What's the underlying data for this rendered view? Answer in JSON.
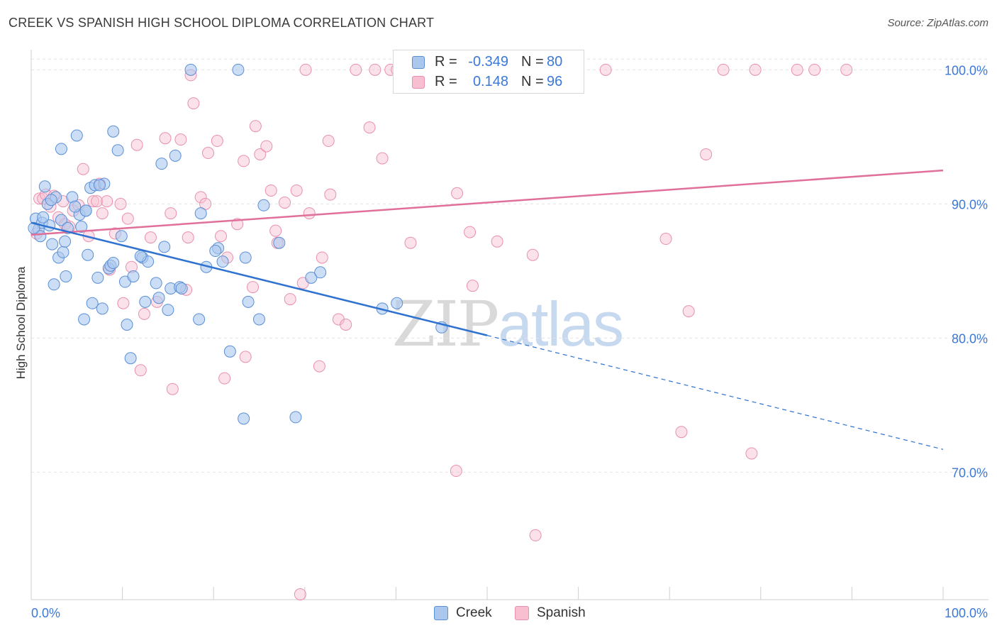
{
  "header": {
    "title": "CREEK VS SPANISH HIGH SCHOOL DIPLOMA CORRELATION CHART",
    "source": "Source: ZipAtlas.com"
  },
  "legend": {
    "creek": {
      "r_label": "R =",
      "r_value": "-0.349",
      "n_label": "N =",
      "n_value": "80"
    },
    "spanish": {
      "r_label": "R =",
      "r_value": "0.148",
      "n_label": "N =",
      "n_value": "96"
    }
  },
  "bottom_legend": [
    "Creek",
    "Spanish"
  ],
  "watermark": {
    "zip": "ZIP",
    "atlas": "atlas"
  },
  "colors": {
    "creek_fill": "#aac8ee",
    "creek_stroke": "#5a8fd6",
    "creek_line": "#2f72d0",
    "spanish_fill": "#f7bfd0",
    "spanish_stroke": "#e890ad",
    "spanish_line": "#e0709a",
    "tick_label": "#3b78d8",
    "grid": "#e4e4e4"
  },
  "chart_data": {
    "type": "scatter",
    "title": "CREEK VS SPANISH HIGH SCHOOL DIPLOMA CORRELATION CHART",
    "xlabel": "",
    "ylabel": "High School Diploma",
    "xlim": [
      0,
      100
    ],
    "ylim": [
      60.5,
      101.5
    ],
    "x_tick_labels": [
      "0.0%",
      "100.0%"
    ],
    "y_ticks": [
      70,
      80,
      90,
      100
    ],
    "y_tick_labels": [
      "70.0%",
      "80.0%",
      "90.0%",
      "100.0%"
    ],
    "grid": true,
    "series": [
      {
        "name": "Creek",
        "trend": {
          "x0": 0,
          "y0": 88.6,
          "x1": 50,
          "y1": 80.2,
          "dashed_to_x": 100,
          "dashed_to_y": 71.7
        },
        "points": [
          [
            0.5,
            88.9
          ],
          [
            0.8,
            88.1
          ],
          [
            1.0,
            87.6
          ],
          [
            1.2,
            88.6
          ],
          [
            1.5,
            91.3
          ],
          [
            1.8,
            90.0
          ],
          [
            2.0,
            88.4
          ],
          [
            2.3,
            87.0
          ],
          [
            2.5,
            84.0
          ],
          [
            2.7,
            90.5
          ],
          [
            3.0,
            86.0
          ],
          [
            3.3,
            88.8
          ],
          [
            3.5,
            86.4
          ],
          [
            3.7,
            87.2
          ],
          [
            3.8,
            84.6
          ],
          [
            3.3,
            94.1
          ],
          [
            4.0,
            88.2
          ],
          [
            4.5,
            90.5
          ],
          [
            5.0,
            95.1
          ],
          [
            5.3,
            89.2
          ],
          [
            5.5,
            88.3
          ],
          [
            5.8,
            81.4
          ],
          [
            6.0,
            89.5
          ],
          [
            6.2,
            86.2
          ],
          [
            6.5,
            91.2
          ],
          [
            6.7,
            82.6
          ],
          [
            7.0,
            91.4
          ],
          [
            7.3,
            84.5
          ],
          [
            7.8,
            82.2
          ],
          [
            8.0,
            91.5
          ],
          [
            8.5,
            85.2
          ],
          [
            8.7,
            85.4
          ],
          [
            9.0,
            95.4
          ],
          [
            9.5,
            94.0
          ],
          [
            9.9,
            87.6
          ],
          [
            10.3,
            84.2
          ],
          [
            10.5,
            81.0
          ],
          [
            10.9,
            78.5
          ],
          [
            11.2,
            84.6
          ],
          [
            12.2,
            86.0
          ],
          [
            12.5,
            82.7
          ],
          [
            12.8,
            85.7
          ],
          [
            13.7,
            84.1
          ],
          [
            14.0,
            83.0
          ],
          [
            14.3,
            93.0
          ],
          [
            14.6,
            86.8
          ],
          [
            15.0,
            82.1
          ],
          [
            15.3,
            83.7
          ],
          [
            15.8,
            93.6
          ],
          [
            16.3,
            83.8
          ],
          [
            17.5,
            100.0
          ],
          [
            18.4,
            81.4
          ],
          [
            18.6,
            89.3
          ],
          [
            19.2,
            85.3
          ],
          [
            20.5,
            86.7
          ],
          [
            21.0,
            85.7
          ],
          [
            21.8,
            79.0
          ],
          [
            22.7,
            100.0
          ],
          [
            23.3,
            74.0
          ],
          [
            23.5,
            86.0
          ],
          [
            23.8,
            82.7
          ],
          [
            25.0,
            81.4
          ],
          [
            25.5,
            89.9
          ],
          [
            27.2,
            87.1
          ],
          [
            29.0,
            74.1
          ],
          [
            30.7,
            84.5
          ],
          [
            31.7,
            84.9
          ],
          [
            38.5,
            82.2
          ],
          [
            40.1,
            82.6
          ],
          [
            45.0,
            80.8
          ],
          [
            6.0,
            89.5
          ],
          [
            4.8,
            89.8
          ],
          [
            7.5,
            91.4
          ],
          [
            2.2,
            90.3
          ],
          [
            12.0,
            86.1
          ],
          [
            9.0,
            85.6
          ],
          [
            16.5,
            83.7
          ],
          [
            20.2,
            86.5
          ],
          [
            1.3,
            89.0
          ],
          [
            0.3,
            88.2
          ]
        ]
      },
      {
        "name": "Spanish",
        "trend": {
          "x0": 0,
          "y0": 87.7,
          "x1": 100,
          "y1": 92.5
        },
        "points": [
          [
            0.6,
            87.8
          ],
          [
            0.9,
            90.4
          ],
          [
            1.3,
            90.4
          ],
          [
            1.6,
            90.7
          ],
          [
            2.1,
            89.8
          ],
          [
            2.5,
            90.6
          ],
          [
            3.0,
            89.0
          ],
          [
            3.5,
            90.2
          ],
          [
            3.7,
            88.5
          ],
          [
            4.2,
            88.3
          ],
          [
            4.6,
            89.5
          ],
          [
            5.2,
            89.9
          ],
          [
            5.7,
            92.6
          ],
          [
            6.3,
            87.6
          ],
          [
            6.8,
            90.2
          ],
          [
            7.2,
            90.2
          ],
          [
            7.5,
            91.5
          ],
          [
            7.8,
            89.3
          ],
          [
            8.3,
            90.2
          ],
          [
            8.6,
            85.1
          ],
          [
            9.2,
            87.8
          ],
          [
            9.8,
            90.0
          ],
          [
            10.1,
            82.6
          ],
          [
            10.6,
            88.9
          ],
          [
            11.0,
            85.3
          ],
          [
            11.6,
            94.4
          ],
          [
            12.0,
            77.6
          ],
          [
            12.4,
            81.8
          ],
          [
            13.1,
            87.5
          ],
          [
            13.8,
            82.7
          ],
          [
            14.7,
            94.9
          ],
          [
            15.3,
            89.3
          ],
          [
            15.5,
            76.2
          ],
          [
            16.4,
            94.8
          ],
          [
            17.0,
            83.6
          ],
          [
            17.2,
            87.5
          ],
          [
            17.5,
            99.6
          ],
          [
            17.8,
            97.5
          ],
          [
            18.6,
            90.5
          ],
          [
            19.1,
            90.0
          ],
          [
            19.4,
            93.8
          ],
          [
            20.4,
            94.7
          ],
          [
            20.8,
            87.6
          ],
          [
            21.2,
            77.0
          ],
          [
            21.5,
            86.0
          ],
          [
            22.6,
            88.5
          ],
          [
            23.3,
            93.2
          ],
          [
            23.5,
            78.6
          ],
          [
            24.3,
            83.8
          ],
          [
            24.6,
            95.8
          ],
          [
            25.1,
            93.7
          ],
          [
            25.8,
            94.3
          ],
          [
            26.3,
            91.0
          ],
          [
            26.8,
            88.0
          ],
          [
            27.0,
            87.1
          ],
          [
            27.8,
            90.1
          ],
          [
            28.4,
            82.9
          ],
          [
            29.1,
            91.0
          ],
          [
            29.5,
            60.9
          ],
          [
            29.8,
            84.1
          ],
          [
            30.1,
            100.0
          ],
          [
            30.5,
            89.3
          ],
          [
            31.6,
            77.9
          ],
          [
            31.9,
            86.0
          ],
          [
            32.6,
            94.7
          ],
          [
            32.8,
            90.7
          ],
          [
            33.7,
            81.4
          ],
          [
            34.5,
            81.0
          ],
          [
            35.6,
            100.0
          ],
          [
            37.1,
            95.7
          ],
          [
            37.7,
            100.0
          ],
          [
            38.5,
            93.4
          ],
          [
            39.4,
            100.0
          ],
          [
            40.1,
            100.0
          ],
          [
            41.6,
            87.1
          ],
          [
            46.2,
            100.0
          ],
          [
            46.6,
            70.1
          ],
          [
            46.7,
            90.8
          ],
          [
            48.1,
            87.9
          ],
          [
            48.4,
            83.9
          ],
          [
            51.1,
            87.2
          ],
          [
            52.0,
            100.0
          ],
          [
            55.0,
            86.2
          ],
          [
            55.3,
            65.3
          ],
          [
            56.5,
            100.0
          ],
          [
            63.0,
            100.0
          ],
          [
            69.6,
            87.4
          ],
          [
            71.3,
            73.0
          ],
          [
            72.1,
            82.0
          ],
          [
            74.0,
            93.7
          ],
          [
            75.9,
            100.0
          ],
          [
            79.0,
            71.4
          ],
          [
            79.4,
            100.0
          ],
          [
            84.0,
            100.0
          ],
          [
            85.9,
            100.0
          ],
          [
            89.4,
            100.0
          ]
        ]
      }
    ]
  }
}
